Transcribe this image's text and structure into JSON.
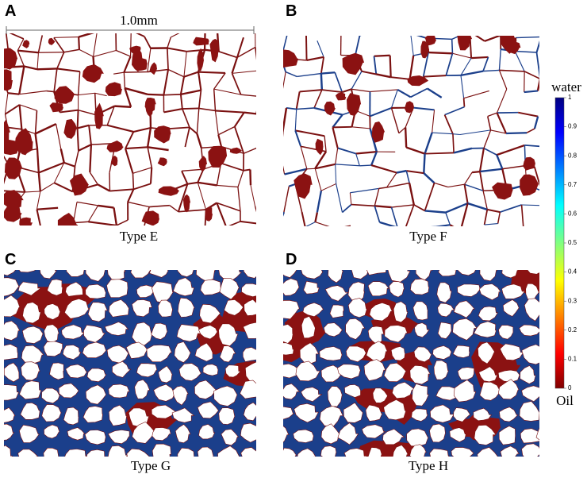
{
  "panels": [
    {
      "label": "A",
      "caption": "Type E",
      "scale_bar": "1.0mm"
    },
    {
      "label": "B",
      "caption": "Type F"
    },
    {
      "label": "C",
      "caption": "Type G"
    },
    {
      "label": "D",
      "caption": "Type H"
    }
  ],
  "colorbar": {
    "top_label": "water",
    "bottom_label": "Oil",
    "ticks": [
      1,
      0.9,
      0.8,
      0.7,
      0.6,
      0.5,
      0.4,
      0.3,
      0.2,
      0.1,
      0
    ]
  }
}
